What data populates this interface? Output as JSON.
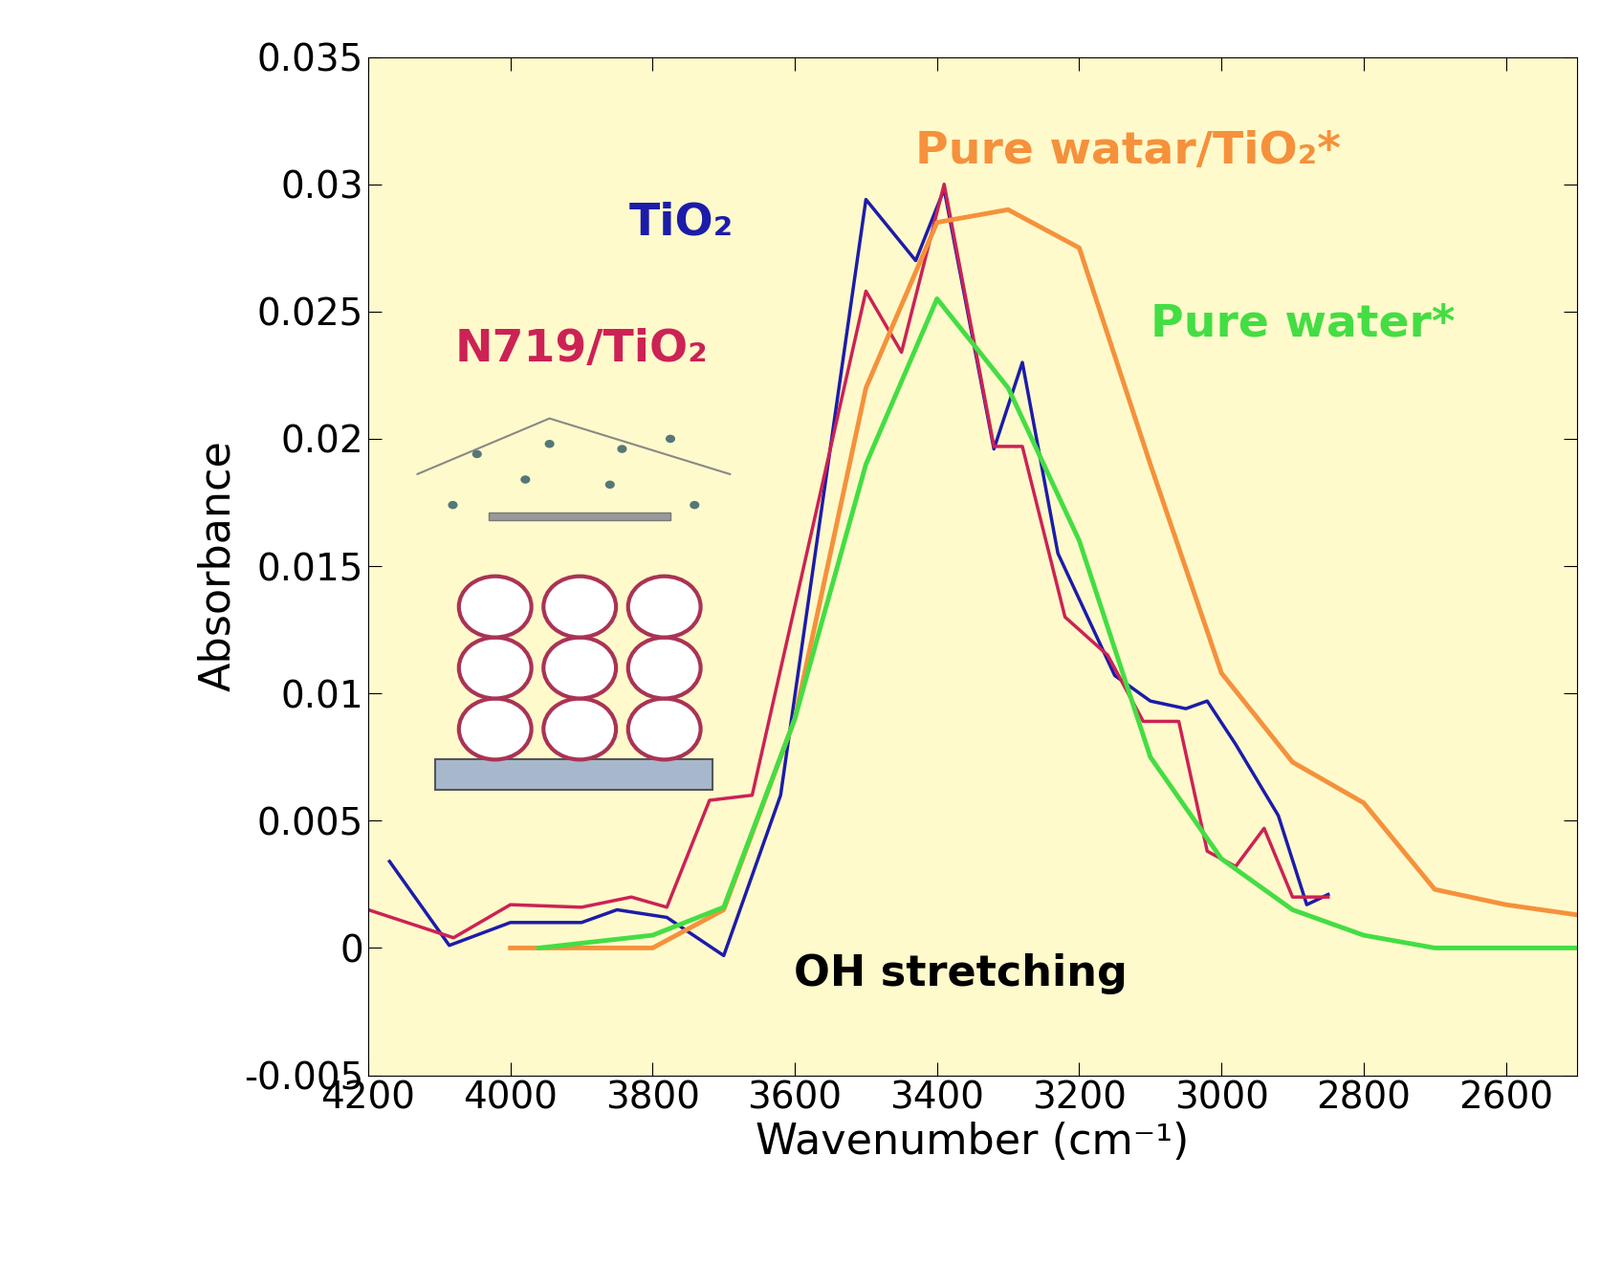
{
  "chart_data": {
    "type": "line",
    "x_label": "Wavenumber (cm⁻¹)",
    "y_label": "Absorbance",
    "annotations": [
      "OH stretching"
    ],
    "xlim": [
      4200,
      2500
    ],
    "xticks": [
      4200,
      4000,
      3800,
      3600,
      3400,
      3200,
      3000,
      2800,
      2600
    ],
    "ylim": [
      -0.005,
      0.035
    ],
    "yticks": [
      -0.005,
      0,
      0.005,
      0.01,
      0.015,
      0.02,
      0.025,
      0.03,
      0.035
    ],
    "grid": false,
    "series": [
      {
        "name": "TiO₂",
        "color": "#1c1caa",
        "x": [
          4170,
          4086,
          4000,
          3900,
          3850,
          3780,
          3700,
          3620,
          3500,
          3430,
          3390,
          3320,
          3280,
          3230,
          3150,
          3100,
          3050,
          3020,
          2980,
          2920,
          2880,
          2850
        ],
        "values": [
          0.0034,
          0.0001,
          0.001,
          0.001,
          0.0015,
          0.0012,
          -0.0003,
          0.006,
          0.0294,
          0.027,
          0.0298,
          0.0196,
          0.023,
          0.0155,
          0.0107,
          0.0097,
          0.0094,
          0.0097,
          0.008,
          0.0052,
          0.0017,
          0.0021
        ]
      },
      {
        "name": "N719/TiO₂",
        "color": "#cc2255",
        "x": [
          4200,
          4080,
          4000,
          3900,
          3830,
          3780,
          3720,
          3660,
          3500,
          3450,
          3390,
          3320,
          3280,
          3220,
          3160,
          3110,
          3060,
          3020,
          2980,
          2940,
          2900,
          2850
        ],
        "values": [
          0.0015,
          0.0004,
          0.0017,
          0.0016,
          0.002,
          0.0016,
          0.0058,
          0.006,
          0.0258,
          0.0234,
          0.03,
          0.0197,
          0.0197,
          0.013,
          0.0115,
          0.0089,
          0.0089,
          0.0038,
          0.0032,
          0.0047,
          0.002,
          0.002
        ]
      },
      {
        "name": "Pure watar/TiO₂*",
        "color": "#f5913c",
        "x": [
          4000,
          3900,
          3800,
          3700,
          3600,
          3500,
          3400,
          3300,
          3200,
          3100,
          3000,
          2900,
          2800,
          2700,
          2600,
          2500
        ],
        "values": [
          0,
          0,
          0,
          0.0015,
          0.009,
          0.022,
          0.0285,
          0.029,
          0.0275,
          0.019,
          0.0108,
          0.0073,
          0.0057,
          0.0023,
          0.0017,
          0.0013
        ]
      },
      {
        "name": "Pure water*",
        "color": "#44dd44",
        "x": [
          3960,
          3800,
          3700,
          3600,
          3500,
          3400,
          3300,
          3200,
          3100,
          3000,
          2900,
          2800,
          2700,
          2500
        ],
        "values": [
          0,
          0.0005,
          0.0016,
          0.009,
          0.019,
          0.0255,
          0.022,
          0.016,
          0.0075,
          0.0035,
          0.0015,
          0.0005,
          0,
          0
        ]
      }
    ]
  }
}
